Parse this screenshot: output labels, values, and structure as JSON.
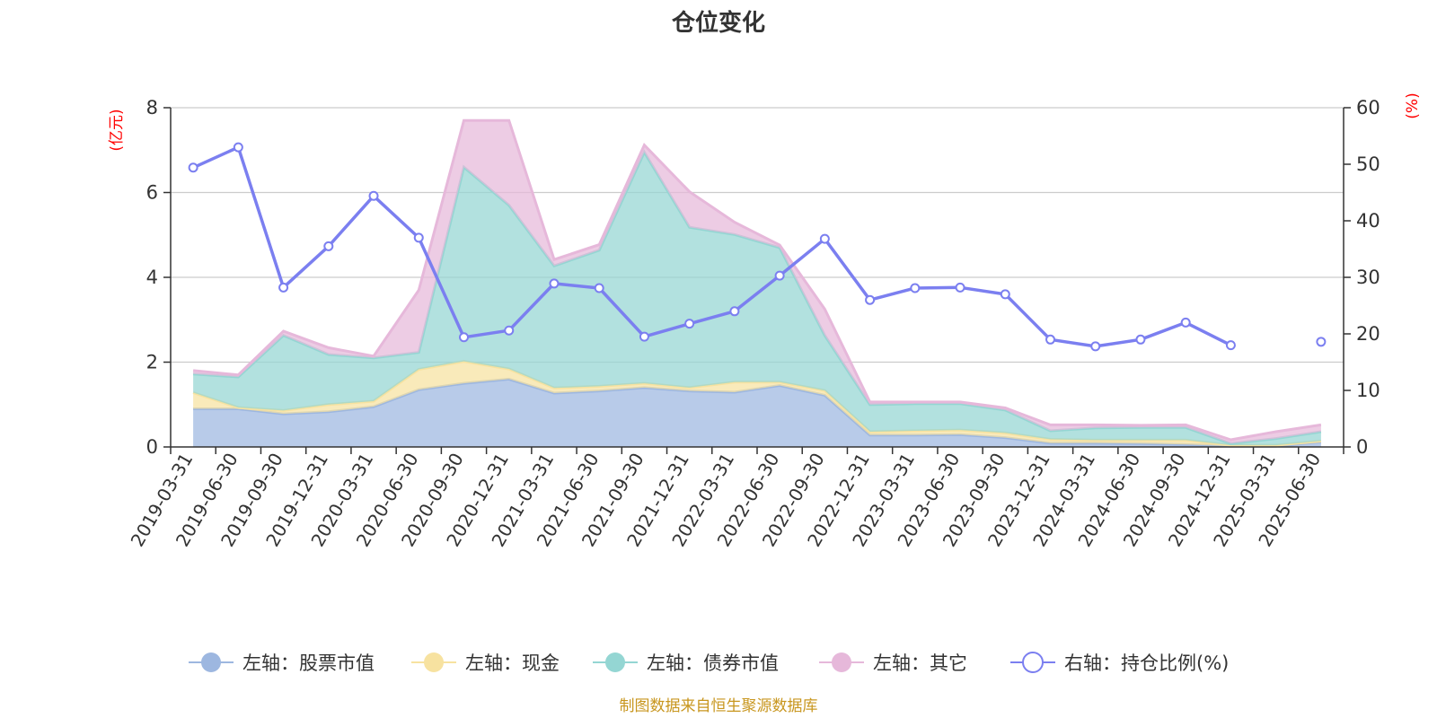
{
  "chart_data": {
    "type": "area",
    "title": "仓位变化",
    "source_note": "制图数据来自恒生聚源数据库",
    "left_axis": {
      "unit": "(亿元)",
      "ylim": [
        0,
        8
      ],
      "ticks": [
        "0",
        "2",
        "4",
        "6",
        "8"
      ]
    },
    "right_axis": {
      "unit": "(%)",
      "ylim": [
        0,
        60
      ],
      "ticks": [
        "0",
        "10",
        "20",
        "30",
        "40",
        "50",
        "60"
      ]
    },
    "categories": [
      "2019-03-31",
      "2019-06-30",
      "2019-09-30",
      "2019-12-31",
      "2020-03-31",
      "2020-06-30",
      "2020-09-30",
      "2020-12-31",
      "2021-03-31",
      "2021-06-30",
      "2021-09-30",
      "2021-12-31",
      "2022-03-31",
      "2022-06-30",
      "2022-09-30",
      "2022-12-31",
      "2023-03-31",
      "2023-06-30",
      "2023-09-30",
      "2023-12-31",
      "2024-03-31",
      "2024-06-30",
      "2024-09-30",
      "2024-12-31",
      "2025-03-31",
      "2025-06-30"
    ],
    "stacked_series": [
      {
        "name": "左轴：股票市值",
        "axis": "left",
        "color": "#9db7e0",
        "values": [
          0.9,
          0.9,
          0.78,
          0.83,
          0.95,
          1.35,
          1.5,
          1.6,
          1.27,
          1.32,
          1.4,
          1.32,
          1.29,
          1.45,
          1.22,
          0.28,
          0.28,
          0.29,
          0.22,
          0.09,
          0.09,
          0.08,
          0.06,
          0.02,
          0.02,
          0.12
        ]
      },
      {
        "name": "左轴：现金",
        "axis": "left",
        "color": "#f7e2a0",
        "values": [
          0.38,
          0.03,
          0.08,
          0.17,
          0.13,
          0.48,
          0.52,
          0.24,
          0.12,
          0.11,
          0.1,
          0.08,
          0.24,
          0.08,
          0.11,
          0.08,
          0.1,
          0.11,
          0.11,
          0.09,
          0.07,
          0.08,
          0.1,
          0.02,
          0.02,
          0.02
        ]
      },
      {
        "name": "左轴：债券市值",
        "axis": "left",
        "color": "#94d6d3",
        "values": [
          0.44,
          0.72,
          1.77,
          1.18,
          1.02,
          0.4,
          4.58,
          3.86,
          2.88,
          3.21,
          5.45,
          3.78,
          3.48,
          3.17,
          1.3,
          0.64,
          0.64,
          0.62,
          0.54,
          0.2,
          0.29,
          0.3,
          0.3,
          0.04,
          0.16,
          0.22
        ]
      },
      {
        "name": "左轴：其它",
        "axis": "left",
        "color": "#e6b8da",
        "values": [
          0.08,
          0.05,
          0.1,
          0.16,
          0.04,
          1.47,
          1.1,
          2.0,
          0.15,
          0.13,
          0.17,
          0.84,
          0.29,
          0.06,
          0.62,
          0.06,
          0.04,
          0.04,
          0.05,
          0.14,
          0.07,
          0.05,
          0.06,
          0.09,
          0.16,
          0.16
        ]
      }
    ],
    "line_series": {
      "name": "右轴：持仓比例(%)",
      "axis": "right",
      "color": "#7b7ff0",
      "values": [
        49.4,
        53.0,
        28.2,
        35.5,
        44.4,
        37.0,
        19.4,
        20.6,
        28.9,
        28.1,
        19.5,
        21.8,
        24.0,
        30.3,
        36.8,
        26.0,
        28.1,
        28.2,
        27.0,
        19.0,
        17.8,
        19.0,
        22.0,
        18.0,
        null,
        18.6
      ]
    },
    "legend_position": "bottom-center",
    "grid": true
  }
}
